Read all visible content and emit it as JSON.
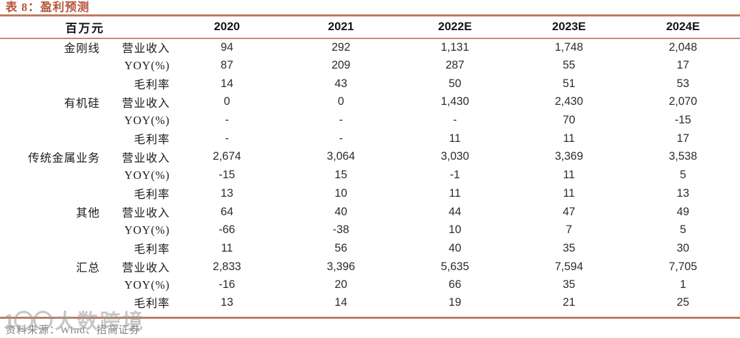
{
  "title": "表 8：盈利预测",
  "table": {
    "unit_header": "百万元",
    "year_headers": [
      "2020",
      "2021",
      "2022E",
      "2023E",
      "2024E"
    ],
    "groups": [
      {
        "name": "金刚线",
        "rows": [
          {
            "metric": "营业收入",
            "values": [
              "94",
              "292",
              "1,131",
              "1,748",
              "2,048"
            ]
          },
          {
            "metric": "YOY(%)",
            "values": [
              "87",
              "209",
              "287",
              "55",
              "17"
            ]
          },
          {
            "metric": "毛利率",
            "values": [
              "14",
              "43",
              "50",
              "51",
              "53"
            ]
          }
        ]
      },
      {
        "name": "有机硅",
        "rows": [
          {
            "metric": "营业收入",
            "values": [
              "0",
              "0",
              "1,430",
              "2,430",
              "2,070"
            ]
          },
          {
            "metric": "YOY(%)",
            "values": [
              "-",
              "-",
              "-",
              "70",
              "-15"
            ]
          },
          {
            "metric": "毛利率",
            "values": [
              "-",
              "-",
              "11",
              "11",
              "17"
            ]
          }
        ]
      },
      {
        "name": "传统金属业务",
        "rows": [
          {
            "metric": "营业收入",
            "values": [
              "2,674",
              "3,064",
              "3,030",
              "3,369",
              "3,538"
            ]
          },
          {
            "metric": "YOY(%)",
            "values": [
              "-15",
              "15",
              "-1",
              "11",
              "5"
            ]
          },
          {
            "metric": "毛利率",
            "values": [
              "13",
              "10",
              "11",
              "11",
              "13"
            ]
          }
        ]
      },
      {
        "name": "其他",
        "rows": [
          {
            "metric": "营业收入",
            "values": [
              "64",
              "40",
              "44",
              "47",
              "49"
            ]
          },
          {
            "metric": "YOY(%)",
            "values": [
              "-66",
              "-38",
              "10",
              "7",
              "5"
            ]
          },
          {
            "metric": "毛利率",
            "values": [
              "11",
              "56",
              "40",
              "35",
              "30"
            ]
          }
        ]
      },
      {
        "name": "汇总",
        "rows": [
          {
            "metric": "营业收入",
            "values": [
              "2,833",
              "3,396",
              "5,635",
              "7,594",
              "7,705"
            ]
          },
          {
            "metric": "YOY(%)",
            "values": [
              "-16",
              "20",
              "66",
              "35",
              "1"
            ]
          },
          {
            "metric": "毛利率",
            "values": [
              "13",
              "14",
              "19",
              "21",
              "25"
            ]
          }
        ]
      }
    ]
  },
  "footer": {
    "source": "资料来源：Wind、招商证券"
  },
  "watermark": {
    "logo": "1〇〇",
    "text": "大数跨境"
  },
  "colors": {
    "accent_title": "#b5543c",
    "rule": "#bd7a5e",
    "header_rule": "#c4896d",
    "body_text": "#1a1a1a",
    "footer_gray": "#808080",
    "watermark_gray": "#9a9a9a"
  }
}
